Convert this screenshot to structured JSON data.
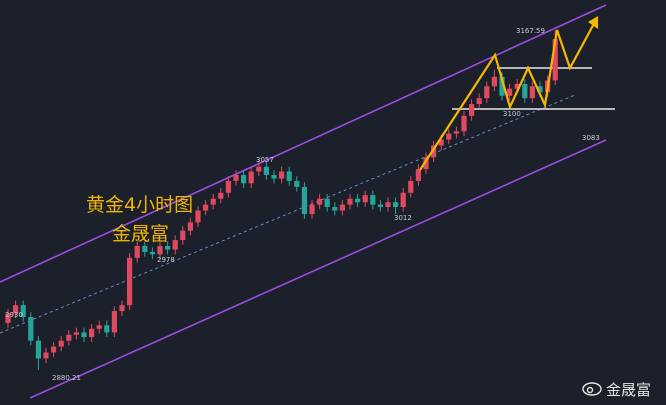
{
  "chart_data": {
    "type": "candlestick",
    "up_color": "#e04a5f",
    "down_color": "#26a69a",
    "candles": [
      [
        2920,
        2932,
        2916,
        2928
      ],
      [
        2928,
        2939,
        2924,
        2935
      ],
      [
        2935,
        2939,
        2921,
        2925
      ],
      [
        2925,
        2929,
        2901,
        2905
      ],
      [
        2905,
        2909,
        2880.21,
        2890
      ],
      [
        2890,
        2899,
        2886,
        2895
      ],
      [
        2895,
        2904,
        2891,
        2900
      ],
      [
        2900,
        2909,
        2896,
        2905
      ],
      [
        2905,
        2914,
        2901,
        2910
      ],
      [
        2910,
        2916,
        2906,
        2912
      ],
      [
        2912,
        2916,
        2904,
        2908
      ],
      [
        2908,
        2919,
        2904,
        2915
      ],
      [
        2915,
        2922,
        2911,
        2918
      ],
      [
        2918,
        2922,
        2908,
        2912
      ],
      [
        2912,
        2934,
        2908,
        2930
      ],
      [
        2930,
        2939,
        2926,
        2935
      ],
      [
        2935,
        2979,
        2931,
        2975
      ],
      [
        2975,
        2989,
        2971,
        2985
      ],
      [
        2985,
        2989,
        2976,
        2980
      ],
      [
        2980,
        2984,
        2974,
        2978
      ],
      [
        2978,
        2989,
        2974,
        2985
      ],
      [
        2985,
        2989,
        2978,
        2982
      ],
      [
        2982,
        2994,
        2978,
        2990
      ],
      [
        2990,
        3002,
        2986,
        2998
      ],
      [
        2998,
        3009,
        2994,
        3005
      ],
      [
        3005,
        3019,
        3001,
        3015
      ],
      [
        3015,
        3024,
        3011,
        3020
      ],
      [
        3020,
        3029,
        3016,
        3025
      ],
      [
        3025,
        3034,
        3021,
        3030
      ],
      [
        3030,
        3044,
        3026,
        3040
      ],
      [
        3040,
        3049,
        3036,
        3045
      ],
      [
        3045,
        3049,
        3034,
        3038
      ],
      [
        3038,
        3052,
        3034,
        3048
      ],
      [
        3048,
        3057,
        3044,
        3052
      ],
      [
        3052,
        3056,
        3041,
        3045
      ],
      [
        3045,
        3049,
        3038,
        3042
      ],
      [
        3042,
        3052,
        3038,
        3048
      ],
      [
        3048,
        3052,
        3036,
        3040
      ],
      [
        3040,
        3044,
        3031,
        3035
      ],
      [
        3035,
        3039,
        3008,
        3012
      ],
      [
        3012,
        3024,
        3008,
        3020
      ],
      [
        3020,
        3029,
        3016,
        3025
      ],
      [
        3025,
        3029,
        3014,
        3018
      ],
      [
        3018,
        3022,
        3011,
        3015
      ],
      [
        3015,
        3024,
        3011,
        3020
      ],
      [
        3020,
        3029,
        3016,
        3025
      ],
      [
        3025,
        3029,
        3018,
        3022
      ],
      [
        3022,
        3032,
        3018,
        3028
      ],
      [
        3028,
        3032,
        3016,
        3020
      ],
      [
        3020,
        3024,
        3014,
        3018
      ],
      [
        3018,
        3026,
        3014,
        3022
      ],
      [
        3022,
        3026,
        3012,
        3018
      ],
      [
        3018,
        3034,
        3014,
        3030
      ],
      [
        3030,
        3044,
        3026,
        3040
      ],
      [
        3040,
        3054,
        3036,
        3050
      ],
      [
        3050,
        3064,
        3046,
        3060
      ],
      [
        3060,
        3074,
        3056,
        3070
      ],
      [
        3070,
        3079,
        3066,
        3075
      ],
      [
        3075,
        3084,
        3071,
        3080
      ],
      [
        3080,
        3086,
        3076,
        3082
      ],
      [
        3082,
        3099,
        3078,
        3095
      ],
      [
        3095,
        3109,
        3091,
        3105
      ],
      [
        3105,
        3114,
        3101,
        3110
      ],
      [
        3110,
        3124,
        3106,
        3120
      ],
      [
        3120,
        3134,
        3116,
        3128
      ],
      [
        3128,
        3132,
        3108,
        3112
      ],
      [
        3112,
        3122,
        3108,
        3118
      ],
      [
        3118,
        3126,
        3114,
        3122
      ],
      [
        3122,
        3126,
        3106,
        3110
      ],
      [
        3110,
        3124,
        3106,
        3120
      ],
      [
        3120,
        3124,
        3111,
        3115
      ],
      [
        3115,
        3129,
        3111,
        3125
      ],
      [
        3125,
        3167.59,
        3121,
        3160
      ]
    ],
    "title_lines": [
      "黄金4小时图",
      "金晟富"
    ],
    "annotations": [
      "3167.59",
      "3100",
      "3083",
      "3057",
      "3012",
      "2978",
      "2930",
      "2880.21"
    ],
    "watermark": "金晟富"
  }
}
